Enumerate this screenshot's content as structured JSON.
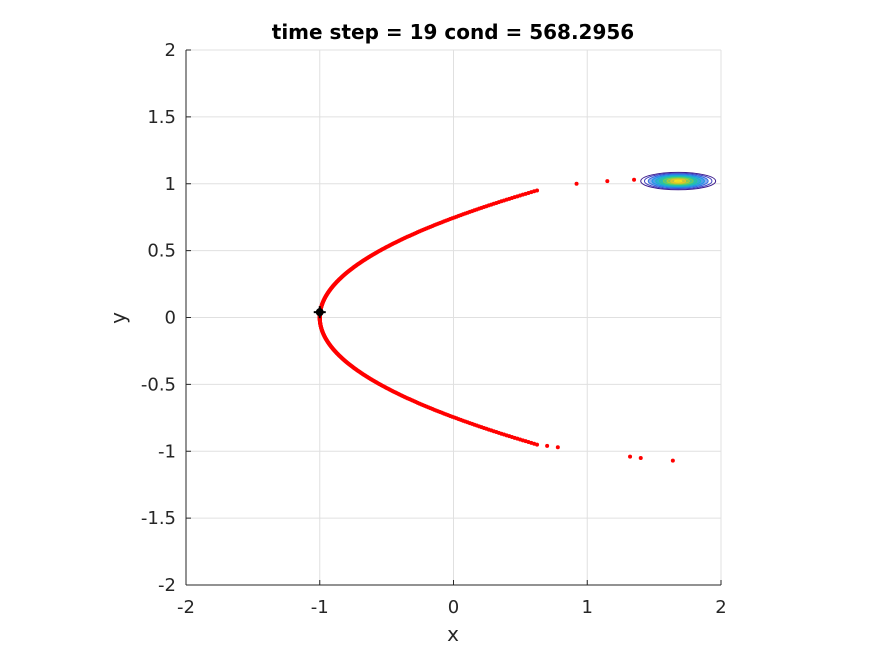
{
  "chart_data": {
    "type": "scatter",
    "title": "time step = 19 cond = 568.2956",
    "xlabel": "x",
    "ylabel": "y",
    "xlim": [
      -2,
      2
    ],
    "ylim": [
      -2,
      2
    ],
    "xticks": [
      "-2",
      "-1",
      "0",
      "1",
      "2"
    ],
    "yticks": [
      "-2",
      "-1.5",
      "-1",
      "-0.5",
      "0",
      "0.5",
      "1",
      "1.5",
      "2"
    ],
    "grid": true,
    "colors": {
      "particles": "#ff0000",
      "marker": "#000000",
      "grid": "#e0e0e0",
      "axis": "#262626"
    },
    "series": [
      {
        "kind": "parabola-particles",
        "equation": "x = 1.8*y^2 - 1",
        "y_range": [
          -0.95,
          0.95
        ],
        "color": "#ff0000"
      },
      {
        "kind": "sparse-particles",
        "color": "#ff0000",
        "points": [
          [
            0.78,
            -0.97
          ],
          [
            0.7,
            -0.96
          ],
          [
            0.92,
            1.0
          ],
          [
            1.15,
            1.02
          ],
          [
            1.35,
            1.03
          ],
          [
            1.32,
            -1.04
          ],
          [
            1.4,
            -1.05
          ],
          [
            1.64,
            -1.07
          ]
        ]
      },
      {
        "kind": "marker",
        "color": "#000000",
        "points": [
          [
            -1.0,
            0.04
          ]
        ]
      },
      {
        "kind": "contour",
        "center": [
          1.68,
          1.02
        ],
        "rx": 0.28,
        "ry": 0.065,
        "levels": 10
      }
    ]
  }
}
